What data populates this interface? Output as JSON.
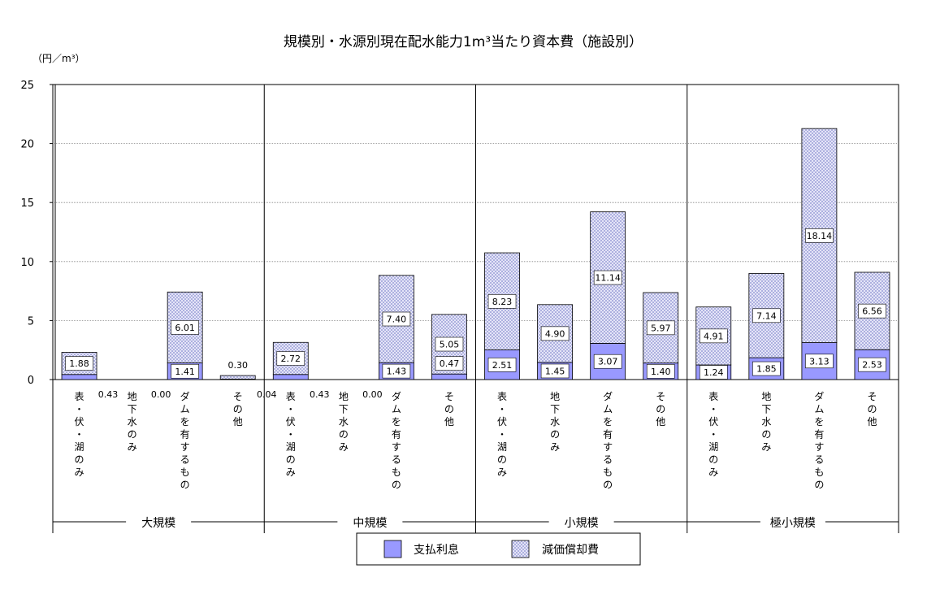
{
  "chart_data": {
    "type": "bar",
    "stacked": true,
    "title": "規模別・水源別現在配水能力1m³当たり資本費（施設別）",
    "unit": "（円／m³）",
    "ylim": [
      0,
      25
    ],
    "yticks": [
      0,
      5,
      10,
      15,
      20,
      25
    ],
    "grid": true,
    "legend_position": "bottom",
    "groups": [
      "大規模",
      "中規模",
      "小規模",
      "極小規模"
    ],
    "categories": [
      "表・伏・湖のみ",
      "地下水のみ",
      "ダムを有するもの",
      "その他"
    ],
    "series": [
      {
        "name": "支払利息",
        "color": "#9999ff",
        "values": [
          [
            0.43,
            0.0,
            1.41,
            0.04
          ],
          [
            0.43,
            0.0,
            1.43,
            0.47
          ],
          [
            2.51,
            1.45,
            3.07,
            1.4
          ],
          [
            1.24,
            1.85,
            3.13,
            2.53
          ]
        ]
      },
      {
        "name": "減価償却費",
        "color": "#c8ccf0",
        "values": [
          [
            1.88,
            0.0,
            6.01,
            0.3
          ],
          [
            2.72,
            0.0,
            7.4,
            5.05
          ],
          [
            8.23,
            4.9,
            11.14,
            5.97
          ],
          [
            4.91,
            7.14,
            18.14,
            6.56
          ]
        ]
      }
    ]
  }
}
